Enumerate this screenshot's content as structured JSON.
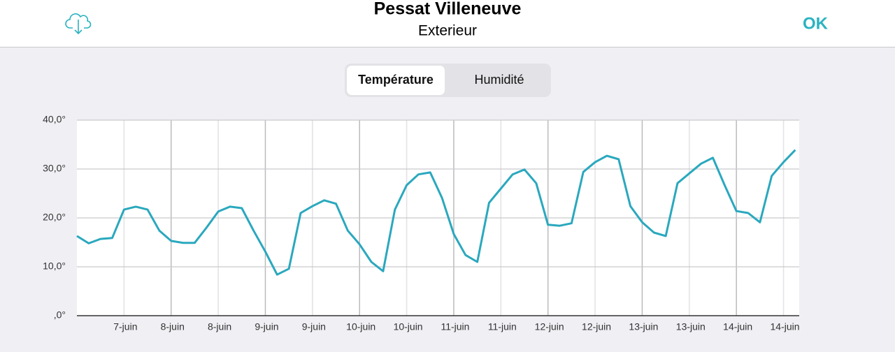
{
  "header": {
    "title": "Pessat Villeneuve",
    "subtitle": "Exterieur",
    "action": "OK"
  },
  "tabs": [
    {
      "label": "Température",
      "selected": true
    },
    {
      "label": "Humidité",
      "selected": false
    }
  ],
  "chart_data": {
    "type": "line",
    "color": "#2aa8be",
    "x": [
      0,
      3,
      6,
      9,
      12,
      15,
      18,
      21,
      24,
      27,
      30,
      33,
      36,
      39,
      42,
      45,
      48,
      51,
      54,
      57,
      60,
      63,
      66,
      69,
      72,
      75,
      78,
      81,
      84,
      87,
      90,
      93,
      96,
      99,
      102,
      105,
      108,
      111,
      114,
      117,
      120,
      123,
      126,
      129,
      132,
      135,
      138,
      141,
      144,
      147,
      150,
      153,
      156,
      159,
      162,
      165,
      168,
      171,
      174,
      177,
      180,
      183
    ],
    "values": [
      16.3,
      14.8,
      15.7,
      15.9,
      21.7,
      22.3,
      21.7,
      17.4,
      15.3,
      14.9,
      14.9,
      18,
      21.3,
      22.3,
      22,
      17.4,
      13.1,
      8.4,
      9.6,
      21,
      22.4,
      23.6,
      22.9,
      17.4,
      14.6,
      11,
      9.1,
      21.7,
      26.7,
      28.9,
      29.3,
      24.1,
      16.7,
      12.4,
      11,
      23.1,
      26,
      28.9,
      29.9,
      27.1,
      18.6,
      18.4,
      18.9,
      29.4,
      31.4,
      32.7,
      32,
      22.4,
      19.1,
      17,
      16.3,
      27.1,
      29.1,
      31.1,
      32.3,
      26.7,
      21.4,
      21,
      19.1,
      28.6,
      31.4,
      33.9
    ],
    "xlim": [
      0,
      184
    ],
    "xticks": [
      {
        "value": 12,
        "label": "7-juin"
      },
      {
        "value": 24,
        "label": "8-juin"
      },
      {
        "value": 36,
        "label": "8-juin"
      },
      {
        "value": 48,
        "label": "9-juin"
      },
      {
        "value": 60,
        "label": "9-juin"
      },
      {
        "value": 72,
        "label": "10-juin"
      },
      {
        "value": 84,
        "label": "10-juin"
      },
      {
        "value": 96,
        "label": "11-juin"
      },
      {
        "value": 108,
        "label": "11-juin"
      },
      {
        "value": 120,
        "label": "12-juin"
      },
      {
        "value": 132,
        "label": "12-juin"
      },
      {
        "value": 144,
        "label": "13-juin"
      },
      {
        "value": 156,
        "label": "13-juin"
      },
      {
        "value": 168,
        "label": "14-juin"
      },
      {
        "value": 180,
        "label": "14-juin"
      }
    ],
    "ylim": [
      0,
      40
    ],
    "yticks": [
      {
        "value": 0,
        "label": ",0°"
      },
      {
        "value": 10,
        "label": "10,0°"
      },
      {
        "value": 20,
        "label": "20,0°"
      },
      {
        "value": 30,
        "label": "30,0°"
      },
      {
        "value": 40,
        "label": "40,0°"
      }
    ],
    "grid": true
  }
}
